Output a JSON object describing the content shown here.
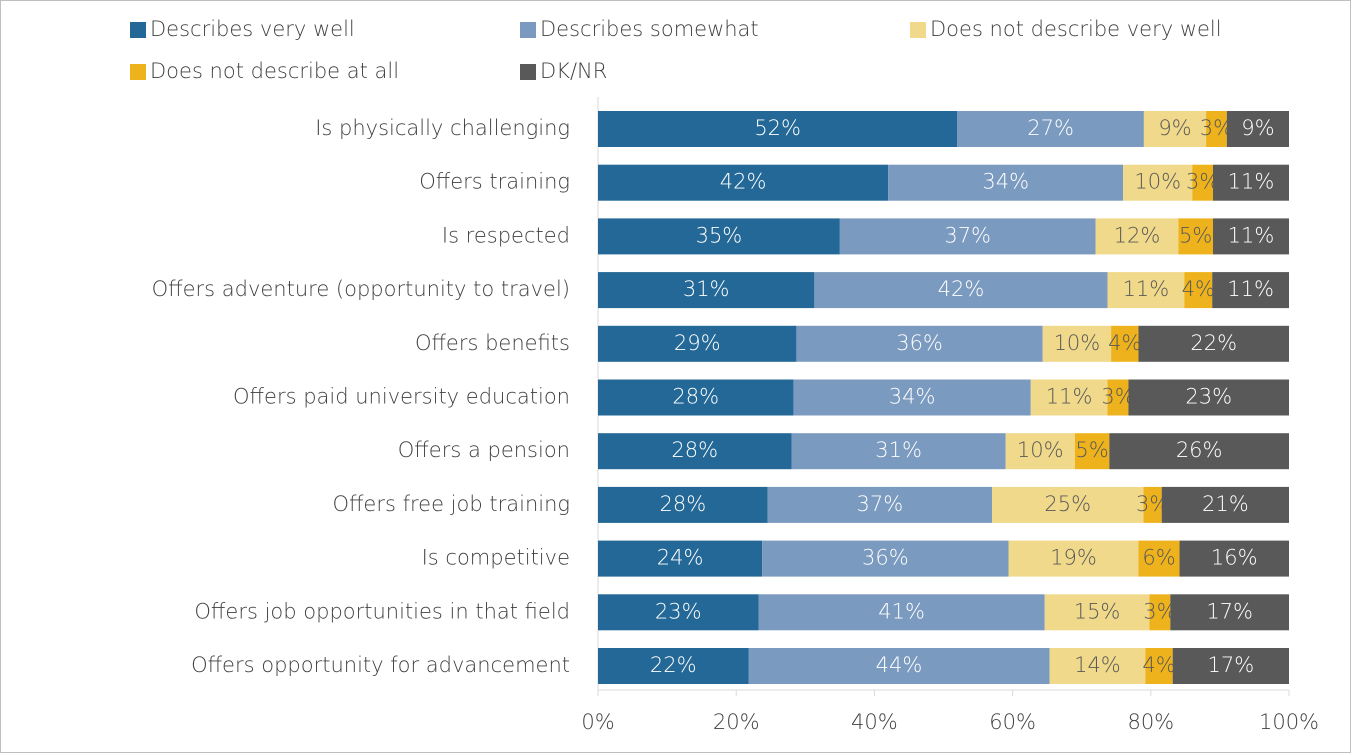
{
  "chart_data": {
    "type": "bar",
    "orientation": "horizontal",
    "stacked": "percent",
    "categories": [
      "Is physically challenging",
      "Offers training",
      "Is respected",
      "Offers adventure (opportunity to travel)",
      "Offers benefits",
      "Offers paid university education",
      "Offers a pension",
      "Offers free job training",
      "Is competitive",
      "Offers job opportunities in that field",
      "Offers opportunity for advancement"
    ],
    "series": [
      {
        "name": "Describes very well",
        "color": "#236896",
        "values": [
          52,
          42,
          35,
          31,
          29,
          28,
          28,
          28,
          24,
          23,
          22
        ],
        "value_labels": [
          "52%",
          "42%",
          "35%",
          "31%",
          "29%",
          "28%",
          "28%",
          "28%",
          "24%",
          "23%",
          "22%"
        ]
      },
      {
        "name": "Describes somewhat",
        "color": "#7b9abf",
        "values": [
          27,
          34,
          37,
          42,
          36,
          34,
          31,
          37,
          36,
          41,
          44
        ],
        "value_labels": [
          "27%",
          "34%",
          "37%",
          "42%",
          "36%",
          "34%",
          "31%",
          "37%",
          "36%",
          "41%",
          "44%"
        ]
      },
      {
        "name": "Does not describe very well",
        "color": "#f0d98a",
        "values": [
          9,
          10,
          12,
          11,
          10,
          11,
          10,
          25,
          19,
          15,
          14
        ],
        "value_labels": [
          "9%",
          "10%",
          "12%",
          "11%",
          "10%",
          "11%",
          "10%",
          "25%",
          "19%",
          "15%",
          "14%"
        ]
      },
      {
        "name": "Does not describe at all",
        "color": "#eeb31c",
        "values": [
          3,
          3,
          5,
          4,
          4,
          3,
          5,
          3,
          6,
          3,
          4
        ],
        "value_labels": [
          "3%",
          "3%",
          "5%",
          "4%",
          "4%",
          "3%",
          "5%",
          "3%",
          "6%",
          "3%",
          "4%"
        ]
      },
      {
        "name": "DK/NR",
        "color": "#595959",
        "values": [
          9,
          11,
          11,
          11,
          22,
          23,
          26,
          21,
          16,
          17,
          17
        ],
        "value_labels": [
          "9%",
          "11%",
          "11%",
          "11%",
          "22%",
          "23%",
          "26%",
          "21%",
          "16%",
          "17%",
          "17%"
        ]
      }
    ],
    "xlim": [
      0,
      100
    ],
    "xticks": [
      {
        "value": 0,
        "label": "0%"
      },
      {
        "value": 20,
        "label": "20%"
      },
      {
        "value": 40,
        "label": "40%"
      },
      {
        "value": 60,
        "label": "60%"
      },
      {
        "value": 80,
        "label": "80%"
      },
      {
        "value": 100,
        "label": "100%"
      }
    ],
    "grid": false,
    "legend": "top"
  }
}
